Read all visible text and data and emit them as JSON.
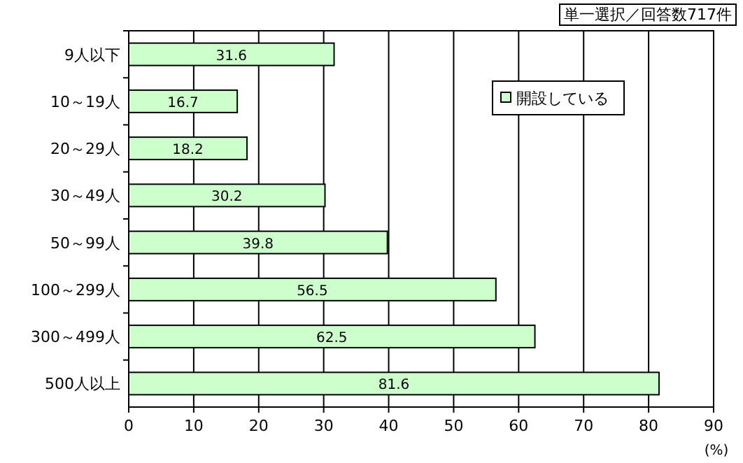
{
  "chart_data": {
    "type": "bar",
    "orientation": "horizontal",
    "categories": [
      "9人以下",
      "10～19人",
      "20～29人",
      "30～49人",
      "50～99人",
      "100～299人",
      "300～499人",
      "500人以上"
    ],
    "series": [
      {
        "name": "開設している",
        "color": "#ccffcc",
        "values": [
          31.6,
          16.7,
          18.2,
          30.2,
          39.8,
          56.5,
          62.5,
          81.6
        ]
      }
    ],
    "xlim": [
      0,
      90
    ],
    "xticks": [
      0,
      10,
      20,
      30,
      40,
      50,
      60,
      70,
      80,
      90
    ],
    "xlabel": "(%)",
    "annotations": [
      "単一選択／回答数717件"
    ],
    "data_labels": true,
    "grid": "x",
    "legend": "top right"
  }
}
